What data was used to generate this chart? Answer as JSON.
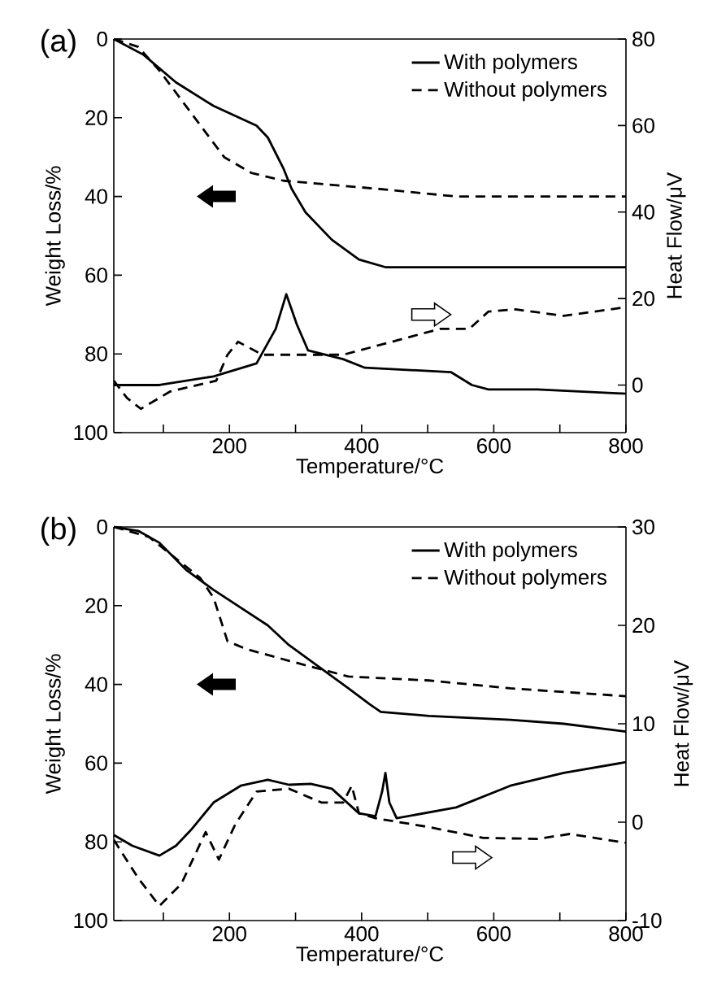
{
  "chart_data": [
    {
      "type": "line",
      "title": "(a)",
      "xlabel": "Temperature/°C",
      "ylabel": "Weight Loss/%",
      "y2label": "Heat Flow/μV",
      "xlim": [
        25,
        800
      ],
      "xticks": [
        {
          "value": 100,
          "label": null
        },
        200,
        {
          "value": 300,
          "label": null
        },
        400,
        {
          "value": 500,
          "label": null
        },
        600,
        {
          "value": 700,
          "label": null
        },
        800
      ],
      "ylim": [
        100,
        0
      ],
      "yticks": [
        0,
        20,
        40,
        60,
        80,
        100
      ],
      "y2lim": [
        -11,
        80
      ],
      "y2ticks": [
        0,
        20,
        40,
        60,
        80
      ],
      "legend": "top right",
      "grid": false,
      "series": [
        {
          "name": "With polymers",
          "color": "#000000",
          "line_style": "solid",
          "x": [
            25,
            70,
            119,
            176,
            241,
            258,
            282,
            294,
            315,
            355,
            396,
            437,
            535,
            800
          ],
          "values": [
            0,
            4,
            11,
            17,
            22,
            25,
            33,
            38,
            44,
            51,
            56,
            58,
            58,
            58
          ]
        },
        {
          "name": "Without polymers",
          "color": "#000000",
          "line_style": "dashed",
          "x": [
            25,
            62,
            94,
            143,
            192,
            233,
            282,
            421,
            543,
            584,
            800
          ],
          "values": [
            0,
            2,
            8,
            19,
            30,
            34,
            36,
            38,
            40,
            40,
            40
          ]
        },
        {
          "color": "#000000",
          "line_style": "solid",
          "axis": "y2",
          "x": [
            25,
            94,
            176,
            241,
            270,
            286,
            302,
            319,
            372,
            405,
            535,
            567,
            592,
            666,
            800
          ],
          "values": [
            0,
            0,
            2,
            5,
            13,
            21,
            14,
            8,
            6,
            4,
            3,
            0,
            -1,
            -1,
            -2
          ]
        },
        {
          "color": "#000000",
          "line_style": "dashed",
          "axis": "y2",
          "x": [
            25,
            45,
            66,
            110,
            180,
            197,
            213,
            250,
            290,
            372,
            421,
            519,
            563,
            592,
            633,
            706,
            800
          ],
          "values": [
            1,
            -3,
            -5.5,
            -1.5,
            1,
            7,
            10,
            7,
            7,
            7,
            9,
            13,
            13,
            17,
            17.5,
            16,
            18
          ]
        }
      ]
    },
    {
      "type": "line",
      "title": "(b)",
      "xlabel": "Temperature/°C",
      "ylabel": "Weight Loss/%",
      "y2label": "Heat Flow/μV",
      "xlim": [
        25,
        800
      ],
      "xticks": [
        {
          "value": 100,
          "label": null
        },
        200,
        {
          "value": 300,
          "label": null
        },
        400,
        {
          "value": 500,
          "label": null
        },
        600,
        {
          "value": 700,
          "label": null
        },
        800
      ],
      "ylim": [
        100,
        0
      ],
      "yticks": [
        0,
        20,
        40,
        60,
        80,
        100
      ],
      "y2lim": [
        -10,
        30
      ],
      "y2ticks": [
        -10,
        0,
        10,
        20,
        30
      ],
      "legend": "top right",
      "grid": false,
      "series": [
        {
          "name": "With polymers",
          "color": "#000000",
          "line_style": "solid",
          "x": [
            25,
            62,
            94,
            135,
            176,
            258,
            290,
            339,
            380,
            412,
            429,
            502,
            625,
            706,
            800
          ],
          "values": [
            0,
            1,
            4,
            11,
            16,
            25,
            30,
            36,
            41,
            45,
            47,
            48,
            49,
            50,
            52
          ]
        },
        {
          "name": "Without polymers",
          "color": "#000000",
          "line_style": "dashed",
          "x": [
            25,
            78,
            119,
            156,
            176,
            197,
            225,
            290,
            380,
            502,
            625,
            800
          ],
          "values": [
            0,
            2.5,
            8,
            13,
            18,
            29,
            31,
            34,
            38,
            39,
            41,
            43
          ]
        },
        {
          "color": "#000000",
          "line_style": "solid",
          "axis": "y2",
          "x": [
            25,
            53,
            94,
            119,
            143,
            176,
            217,
            258,
            290,
            323,
            355,
            396,
            421,
            431,
            436,
            442,
            453,
            543,
            625,
            706,
            800
          ],
          "values": [
            -1.3,
            -2.4,
            -3.4,
            -2.4,
            -0.7,
            2.0,
            3.7,
            4.3,
            3.8,
            3.9,
            3.4,
            0.9,
            0.6,
            3.1,
            5.0,
            2.0,
            0.4,
            1.5,
            3.7,
            5.0,
            6.1
          ]
        },
        {
          "color": "#000000",
          "line_style": "dashed",
          "axis": "y2",
          "x": [
            25,
            62,
            94,
            127,
            164,
            184,
            209,
            241,
            290,
            339,
            372,
            385,
            396,
            421,
            502,
            584,
            666,
            715,
            800
          ],
          "values": [
            -1.8,
            -5.7,
            -8.5,
            -6.3,
            -1.0,
            -3.8,
            -0.2,
            3.1,
            3.4,
            2.0,
            2.0,
            3.7,
            0.9,
            0.4,
            -0.5,
            -1.6,
            -1.7,
            -1.2,
            -2.1
          ]
        }
      ]
    }
  ]
}
